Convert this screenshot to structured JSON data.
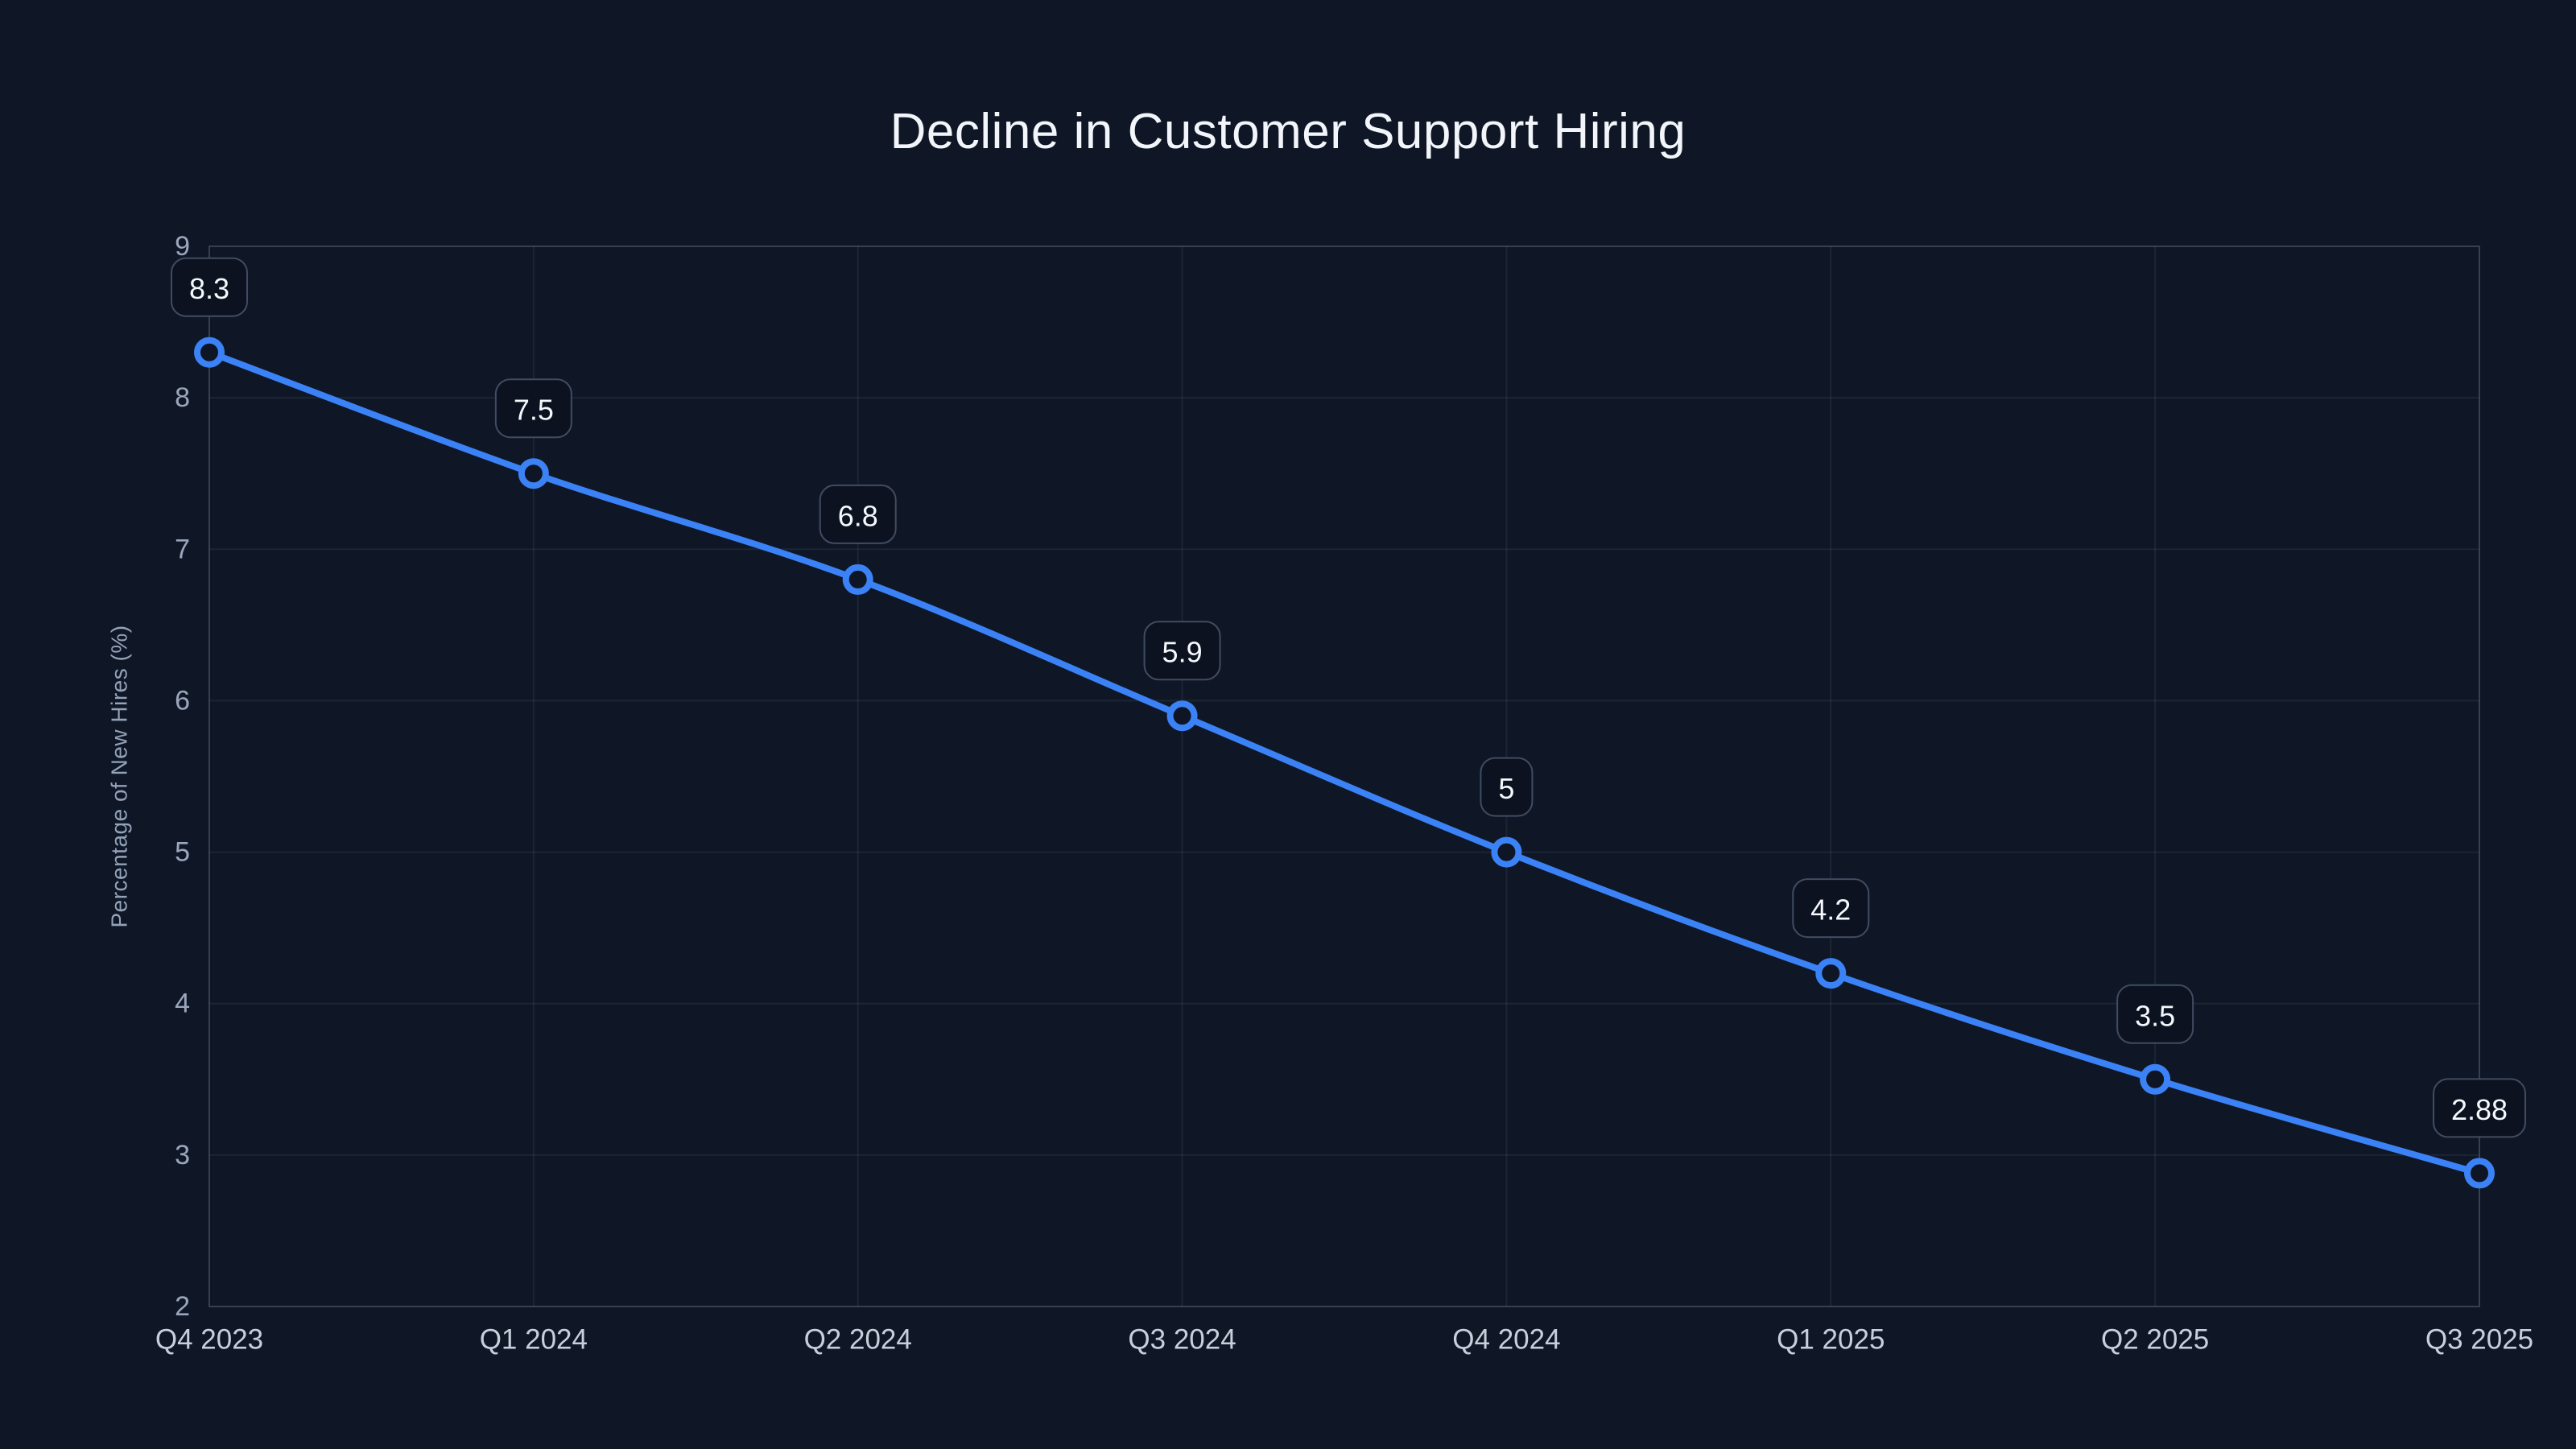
{
  "chart_data": {
    "type": "line",
    "title": "Decline in Customer Support Hiring",
    "xlabel": "",
    "ylabel": "Percentage of New Hires (%)",
    "categories": [
      "Q4 2023",
      "Q1 2024",
      "Q2 2024",
      "Q3 2024",
      "Q4 2024",
      "Q1 2025",
      "Q2 2025",
      "Q3 2025"
    ],
    "series": [
      {
        "name": "Percentage of New Hires",
        "values": [
          8.3,
          7.5,
          6.8,
          5.9,
          5,
          4.2,
          3.5,
          2.88
        ],
        "point_labels": [
          "8.3",
          "7.5",
          "6.8",
          "5.9",
          "5",
          "4.2",
          "3.5",
          "2.88"
        ]
      }
    ],
    "ylim": [
      2,
      9
    ],
    "yticks": [
      2,
      3,
      4,
      5,
      6,
      7,
      8,
      9
    ],
    "grid": true,
    "legend_position": "none",
    "colors": {
      "background": "#0F1726",
      "line": "#3B82F6",
      "marker_fill": "#0E1524",
      "label_box_fill": "#0C1220",
      "label_box_border": "#414C61",
      "label_text": "#F5F8FC",
      "tick_text": "#9AA6BB",
      "xtick_text": "#C7CFDC",
      "title_text": "#F2F5FA"
    }
  }
}
